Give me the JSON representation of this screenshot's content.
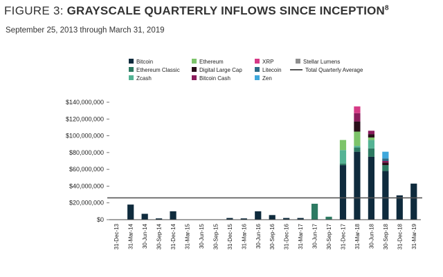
{
  "header": {
    "prefix": "FIGURE 3:",
    "title": "GRAYSCALE QUARTERLY INFLOWS SINCE INCEPTION",
    "footnote": "8",
    "subtitle": "September 25, 2013 through March 31, 2019"
  },
  "chart_data": {
    "type": "bar",
    "stacked": true,
    "title": "GRAYSCALE QUARTERLY INFLOWS SINCE INCEPTION",
    "subtitle": "September 25, 2013 through March 31, 2019",
    "ylim": [
      0,
      140000000
    ],
    "yticks": [
      0,
      20000000,
      40000000,
      60000000,
      80000000,
      100000000,
      120000000,
      140000000
    ],
    "ytick_labels": [
      "$0",
      "$20,000,000",
      "$40,000,000",
      "$60,000,000",
      "$80,000,000",
      "$100,000,000",
      "$120,000,000",
      "$140,000,000"
    ],
    "grid": false,
    "legend_position": "top",
    "categories": [
      "31-Dec-13",
      "31-Mar-14",
      "30-Jun-14",
      "30-Sep-14",
      "31-Dec-14",
      "31-Mar-15",
      "30-Jun-15",
      "30-Sep-15",
      "31-Dec-15",
      "31-Mar-16",
      "30-Jun-16",
      "30-Sep-16",
      "31-Dec-16",
      "31-Mar-17",
      "30-Jun-17",
      "30-Sep-17",
      "31-Dec-17",
      "31-Mar-18",
      "30-Jun-18",
      "30-Sep-18",
      "31-Dec-18",
      "31-Mar-19"
    ],
    "series": [
      {
        "name": "Bitcoin",
        "color": "#0f2b3d",
        "values": [
          0,
          18000000,
          7000000,
          1500000,
          10000000,
          0,
          0,
          0,
          2000000,
          1500000,
          10000000,
          5500000,
          2000000,
          2000000,
          0,
          0,
          65000000,
          81000000,
          75000000,
          58000000,
          29000000,
          43000000
        ]
      },
      {
        "name": "Ethereum Classic",
        "color": "#2d7a62",
        "values": [
          0,
          0,
          0,
          0,
          0,
          0,
          0,
          0,
          0,
          0,
          0,
          0,
          0,
          0,
          19000000,
          3500000,
          2000000,
          5000000,
          10000000,
          7000000,
          0,
          0
        ]
      },
      {
        "name": "Zcash",
        "color": "#54b394",
        "values": [
          0,
          0,
          0,
          0,
          0,
          0,
          0,
          0,
          0,
          0,
          0,
          0,
          0,
          0,
          0,
          0,
          16000000,
          2000000,
          10000000,
          0,
          0,
          0
        ]
      },
      {
        "name": "Ethereum",
        "color": "#7dc46a",
        "values": [
          0,
          0,
          0,
          0,
          0,
          0,
          0,
          0,
          0,
          0,
          0,
          0,
          0,
          0,
          0,
          0,
          12000000,
          17000000,
          3000000,
          0,
          0,
          0
        ]
      },
      {
        "name": "Digital Large Cap",
        "color": "#2a0f1a",
        "values": [
          0,
          0,
          0,
          0,
          0,
          0,
          0,
          0,
          0,
          0,
          0,
          0,
          0,
          0,
          0,
          0,
          0,
          12000000,
          4000000,
          3000000,
          0,
          0
        ]
      },
      {
        "name": "Bitcoin Cash",
        "color": "#8a1d5c",
        "values": [
          0,
          0,
          0,
          0,
          0,
          0,
          0,
          0,
          0,
          0,
          0,
          0,
          0,
          0,
          0,
          0,
          0,
          10000000,
          4000000,
          2000000,
          0,
          0
        ]
      },
      {
        "name": "XRP",
        "color": "#d63a86",
        "values": [
          0,
          0,
          0,
          0,
          0,
          0,
          0,
          0,
          0,
          0,
          0,
          0,
          0,
          0,
          0,
          0,
          0,
          8000000,
          0,
          0,
          0,
          0
        ]
      },
      {
        "name": "Litecoin",
        "color": "#2d6b86",
        "values": [
          0,
          0,
          0,
          0,
          0,
          0,
          0,
          0,
          0,
          0,
          0,
          0,
          0,
          0,
          0,
          0,
          0,
          0,
          0,
          3000000,
          0,
          0
        ]
      },
      {
        "name": "Zen",
        "color": "#3fa8dc",
        "values": [
          0,
          0,
          0,
          0,
          0,
          0,
          0,
          0,
          0,
          0,
          0,
          0,
          0,
          0,
          0,
          0,
          0,
          0,
          0,
          8000000,
          0,
          0
        ]
      },
      {
        "name": "Stellar Lumens",
        "color": "#8f8f8f",
        "values": [
          0,
          0,
          0,
          0,
          0,
          0,
          0,
          0,
          0,
          0,
          0,
          0,
          0,
          0,
          0,
          0,
          0,
          0,
          0,
          0,
          0,
          0
        ]
      }
    ],
    "reference_line": {
      "name": "Total Quarterly Average",
      "value": 26000000,
      "color": "#555555"
    },
    "legend": [
      {
        "name": "Bitcoin",
        "color": "#0f2b3d",
        "kind": "square"
      },
      {
        "name": "Ethereum",
        "color": "#7dc46a",
        "kind": "square"
      },
      {
        "name": "XRP",
        "color": "#d63a86",
        "kind": "square"
      },
      {
        "name": "Stellar Lumens",
        "color": "#8f8f8f",
        "kind": "square"
      },
      {
        "name": "Ethereum Classic",
        "color": "#2d7a62",
        "kind": "square"
      },
      {
        "name": "Digital Large Cap",
        "color": "#2a0f1a",
        "kind": "square"
      },
      {
        "name": "Litecoin",
        "color": "#2d6b86",
        "kind": "square"
      },
      {
        "name": "Total Quarterly Average",
        "color": "#555555",
        "kind": "line"
      },
      {
        "name": "Zcash",
        "color": "#54b394",
        "kind": "square"
      },
      {
        "name": "Bitcoin Cash",
        "color": "#8a1d5c",
        "kind": "square"
      },
      {
        "name": "Zen",
        "color": "#3fa8dc",
        "kind": "square"
      }
    ]
  }
}
